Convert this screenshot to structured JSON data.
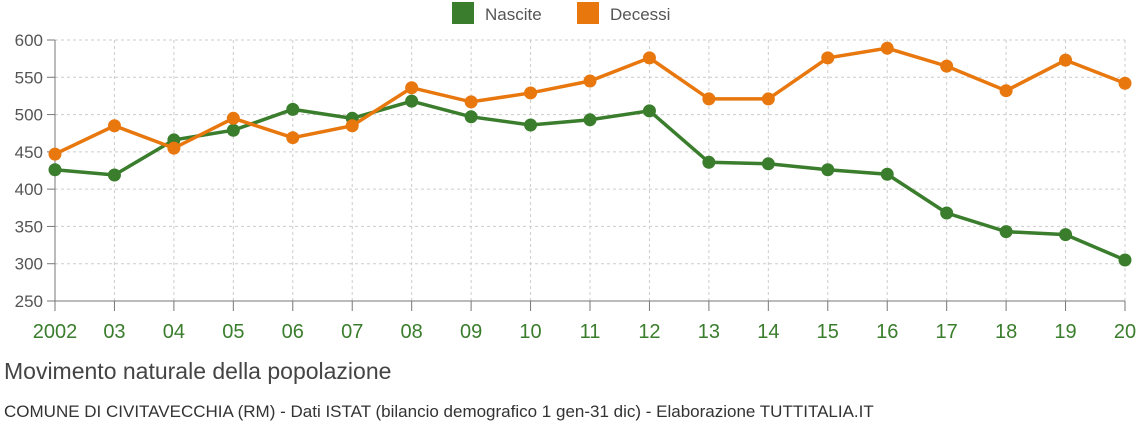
{
  "chart_data": {
    "type": "line",
    "title": "Movimento naturale della popolazione",
    "subtitle": "COMUNE DI CIVITAVECCHIA (RM) - Dati ISTAT (bilancio demografico 1 gen-31 dic) - Elaborazione TUTTITALIA.IT",
    "categories": [
      "2002",
      "03",
      "04",
      "05",
      "06",
      "07",
      "08",
      "09",
      "10",
      "11",
      "12",
      "13",
      "14",
      "15",
      "16",
      "17",
      "18",
      "19",
      "20"
    ],
    "ylim": [
      250,
      600
    ],
    "yticks": [
      250,
      300,
      350,
      400,
      450,
      500,
      550,
      600
    ],
    "grid": true,
    "legend": "top-center",
    "series": [
      {
        "name": "Nascite",
        "color": "#3a7d2c",
        "values": [
          426,
          419,
          466,
          479,
          507,
          495,
          518,
          497,
          486,
          493,
          505,
          436,
          434,
          426,
          420,
          368,
          343,
          339,
          305
        ]
      },
      {
        "name": "Decessi",
        "color": "#e8770e",
        "values": [
          447,
          485,
          455,
          495,
          469,
          485,
          536,
          517,
          529,
          545,
          576,
          521,
          521,
          576,
          589,
          565,
          532,
          573,
          542
        ]
      }
    ]
  }
}
